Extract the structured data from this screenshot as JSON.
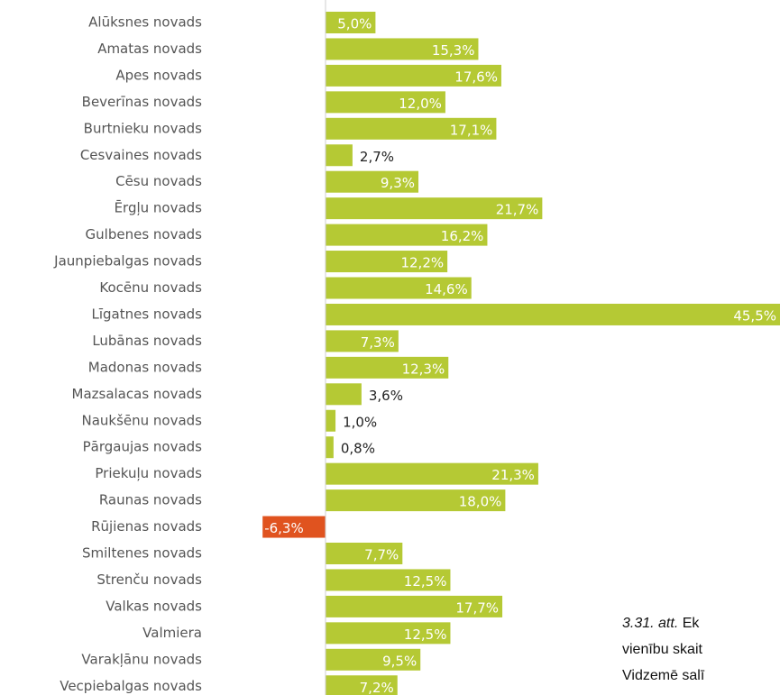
{
  "chart_data": {
    "type": "bar",
    "orientation": "horizontal",
    "categories": [
      "Alūksnes novads",
      "Amatas novads",
      "Apes novads",
      "Beverīnas novads",
      "Burtnieku novads",
      "Cesvaines novads",
      "Cēsu novads",
      "Ērgļu novads",
      "Gulbenes novads",
      "Jaunpiebalgas novads",
      "Kocēnu novads",
      "Līgatnes novads",
      "Lubānas novads",
      "Madonas novads",
      "Mazsalacas novads",
      "Naukšēnu novads",
      "Pārgaujas novads",
      "Priekuļu novads",
      "Raunas novads",
      "Rūjienas novads",
      "Smiltenes novads",
      "Strenču novads",
      "Valkas novads",
      "Valmiera",
      "Varakļānu novads",
      "Vecpiebalgas novads"
    ],
    "values": [
      5.0,
      15.3,
      17.6,
      12.0,
      17.1,
      2.7,
      9.3,
      21.7,
      16.2,
      12.2,
      14.6,
      45.5,
      7.3,
      12.3,
      3.6,
      1.0,
      0.8,
      21.3,
      18.0,
      -6.3,
      7.7,
      12.5,
      17.7,
      12.5,
      9.5,
      7.2
    ],
    "value_labels": [
      "5,0%",
      "15,3%",
      "17,6%",
      "12,0%",
      "17,1%",
      "2,7%",
      "9,3%",
      "21,7%",
      "16,2%",
      "12,2%",
      "14,6%",
      "45,5%",
      "7,3%",
      "12,3%",
      "3,6%",
      "1,0%",
      "0,8%",
      "21,3%",
      "18,0%",
      "-6,3%",
      "7,7%",
      "12,5%",
      "17,7%",
      "12,5%",
      "9,5%",
      "7,2%"
    ],
    "color": "#b5c934",
    "negative_color": "#e0531f",
    "xlim": [
      -6.5,
      45.5
    ],
    "caption": {
      "number": "3.31. att.",
      "lines": [
        "Ek",
        "vienību skait",
        "Vidzemē salī"
      ]
    }
  }
}
